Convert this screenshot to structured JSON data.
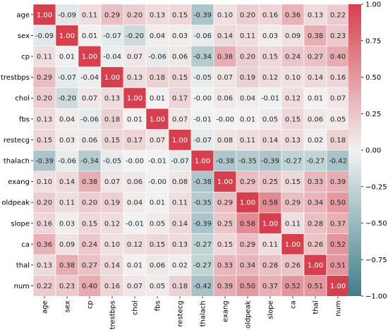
{
  "chart_data": {
    "type": "heatmap",
    "title": "",
    "xlabel": "",
    "ylabel": "",
    "labels": [
      "age",
      "sex",
      "cp",
      "trestbps",
      "chol",
      "fbs",
      "restecg",
      "thalach",
      "exang",
      "oldpeak",
      "slope",
      "ca",
      "thal",
      "num"
    ],
    "matrix": [
      [
        "1.00",
        "-0.09",
        "0.11",
        "0.29",
        "0.20",
        "0.13",
        "0.15",
        "-0.39",
        "0.10",
        "0.20",
        "0.16",
        "0.36",
        "0.13",
        "0.22"
      ],
      [
        "-0.09",
        "1.00",
        "0.01",
        "-0.07",
        "-0.20",
        "0.04",
        "0.03",
        "-0.06",
        "0.14",
        "0.11",
        "0.03",
        "0.09",
        "0.38",
        "0.23"
      ],
      [
        "0.11",
        "0.01",
        "1.00",
        "-0.04",
        "0.07",
        "-0.06",
        "0.06",
        "-0.34",
        "0.38",
        "0.20",
        "0.15",
        "0.24",
        "0.27",
        "0.40"
      ],
      [
        "0.29",
        "-0.07",
        "-0.04",
        "1.00",
        "0.13",
        "0.18",
        "0.15",
        "-0.05",
        "0.07",
        "0.19",
        "0.12",
        "0.10",
        "0.14",
        "0.16"
      ],
      [
        "0.20",
        "-0.20",
        "0.07",
        "0.13",
        "1.00",
        "0.01",
        "0.17",
        "-0.00",
        "0.06",
        "0.04",
        "-0.01",
        "0.12",
        "0.01",
        "0.07"
      ],
      [
        "0.13",
        "0.04",
        "-0.06",
        "0.18",
        "0.01",
        "1.00",
        "0.07",
        "-0.01",
        "-0.00",
        "0.01",
        "0.05",
        "0.15",
        "0.06",
        "0.05"
      ],
      [
        "0.15",
        "0.03",
        "0.06",
        "0.15",
        "0.17",
        "0.07",
        "1.00",
        "-0.07",
        "0.08",
        "0.11",
        "0.14",
        "0.13",
        "0.02",
        "0.18"
      ],
      [
        "-0.39",
        "-0.06",
        "-0.34",
        "-0.05",
        "-0.00",
        "-0.01",
        "-0.07",
        "1.00",
        "-0.38",
        "-0.35",
        "-0.39",
        "-0.27",
        "-0.27",
        "-0.42"
      ],
      [
        "0.10",
        "0.14",
        "0.38",
        "0.07",
        "0.06",
        "-0.00",
        "0.08",
        "-0.38",
        "1.00",
        "0.29",
        "0.25",
        "0.15",
        "0.33",
        "0.39"
      ],
      [
        "0.20",
        "0.11",
        "0.20",
        "0.19",
        "0.04",
        "0.01",
        "0.11",
        "-0.35",
        "0.29",
        "1.00",
        "0.58",
        "0.29",
        "0.34",
        "0.50"
      ],
      [
        "0.16",
        "0.03",
        "0.15",
        "0.12",
        "-0.01",
        "0.05",
        "0.14",
        "-0.39",
        "0.25",
        "0.58",
        "1.00",
        "0.11",
        "0.28",
        "0.37"
      ],
      [
        "0.36",
        "0.09",
        "0.24",
        "0.10",
        "0.12",
        "0.15",
        "0.13",
        "-0.27",
        "0.15",
        "0.29",
        "0.11",
        "1.00",
        "0.26",
        "0.52"
      ],
      [
        "0.13",
        "0.38",
        "0.27",
        "0.14",
        "0.01",
        "0.06",
        "0.02",
        "-0.27",
        "0.33",
        "0.34",
        "0.28",
        "0.26",
        "1.00",
        "0.51"
      ],
      [
        "0.22",
        "0.23",
        "0.40",
        "0.16",
        "0.07",
        "0.05",
        "0.18",
        "-0.42",
        "0.39",
        "0.50",
        "0.37",
        "0.52",
        "0.51",
        "1.00"
      ]
    ],
    "colorbar": {
      "range": [
        -1.0,
        1.0
      ],
      "ticks": [
        "1.00",
        "0.75",
        "0.50",
        "0.25",
        "0.00",
        "−0.25",
        "−0.50",
        "−0.75",
        "−1.00"
      ],
      "colors": {
        "negative": "#3f7f8c",
        "center": "#f2f2f2",
        "positive": "#d6404e"
      }
    },
    "grid": true
  }
}
